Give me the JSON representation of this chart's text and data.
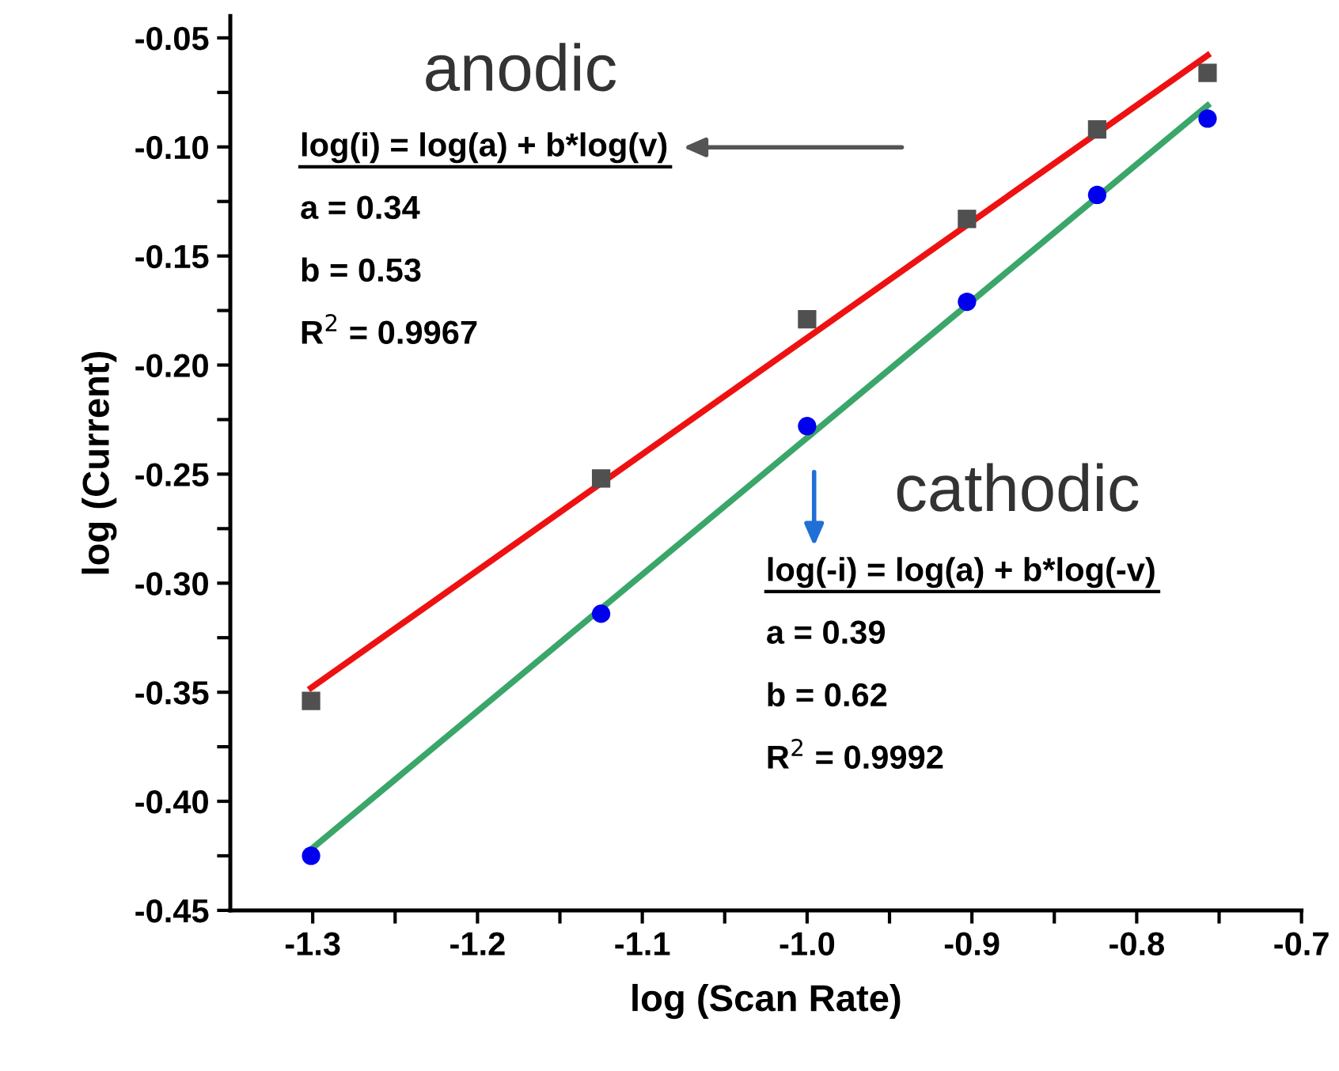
{
  "chart_data": {
    "type": "scatter",
    "xlabel": "log (Scan Rate)",
    "ylabel": "log (Current)",
    "xlim": [
      -1.35,
      -0.7
    ],
    "ylim": [
      -0.45,
      -0.04
    ],
    "xticks": [
      -1.3,
      {
        "value": -1.25,
        "label": null
      },
      -1.2,
      {
        "value": -1.15,
        "label": null
      },
      -1.1,
      {
        "value": -1.05,
        "label": null
      },
      {
        "value": -1.0,
        "label": "-1.0"
      },
      {
        "value": -0.95,
        "label": null
      },
      -0.9,
      {
        "value": -0.85,
        "label": null
      },
      -0.8,
      {
        "value": -0.75,
        "label": null
      },
      -0.7
    ],
    "yticks": [
      {
        "value": -0.45,
        "label": "-0.45"
      },
      {
        "value": -0.425,
        "label": null
      },
      {
        "value": -0.4,
        "label": "-0.40"
      },
      {
        "value": -0.375,
        "label": null
      },
      -0.35,
      {
        "value": -0.325,
        "label": null
      },
      {
        "value": -0.3,
        "label": "-0.30"
      },
      {
        "value": -0.275,
        "label": null
      },
      -0.25,
      {
        "value": -0.225,
        "label": null
      },
      {
        "value": -0.2,
        "label": "-0.20"
      },
      {
        "value": -0.175,
        "label": null
      },
      -0.15,
      {
        "value": -0.125,
        "label": null
      },
      {
        "value": -0.1,
        "label": "-0.10"
      },
      {
        "value": -0.075,
        "label": null
      },
      -0.05
    ],
    "grid": false,
    "legend": false,
    "series": [
      {
        "marker": "square",
        "color": "#505050",
        "x": [
          -1.301,
          -1.125,
          -1.0,
          -0.903,
          -0.824,
          -0.757
        ],
        "values": [
          -0.354,
          -0.252,
          -0.179,
          -0.133,
          -0.092,
          -0.066
        ]
      },
      {
        "marker": "circle",
        "color": "#0000ee",
        "x": [
          -1.301,
          -1.125,
          -1.0,
          -0.903,
          -0.824,
          -0.757
        ],
        "values": [
          -0.425,
          -0.314,
          -0.228,
          -0.171,
          -0.122,
          -0.087
        ]
      },
      {
        "type": "line",
        "color": "#ee1111",
        "x": [
          -1.301,
          -0.757
        ],
        "values": [
          -0.348,
          -0.058
        ]
      },
      {
        "type": "line",
        "color": "#3aa66a",
        "x": [
          -1.301,
          -0.757
        ],
        "values": [
          -0.422,
          -0.081
        ]
      }
    ],
    "annotations": [
      "anodic",
      "log(i) = log(a) + b*log(v)",
      "a = 0.34",
      "b = 0.53",
      "R$^{2}$ = 0.9967",
      "cathodic",
      "log(-i) = log(a) + b*log(-v)",
      "a = 0.39",
      "b = 0.62",
      "R$^{2}$ = 0.9992"
    ]
  }
}
